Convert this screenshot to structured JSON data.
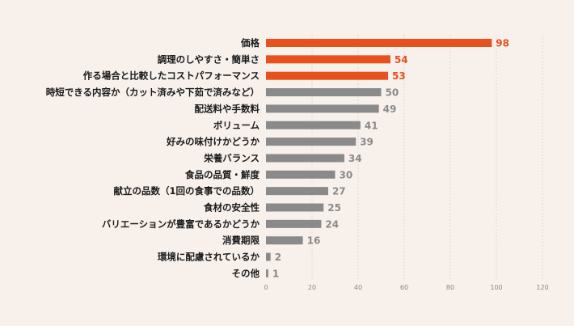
{
  "chart_data": {
    "type": "bar",
    "orientation": "horizontal",
    "categories": [
      "価格",
      "調理のしやすさ・簡単さ",
      "作る場合と比較したコストパフォーマンス",
      "時短できる内容か（カット済みや下茹で済みなど）",
      "配送料や手数料",
      "ボリューム",
      "好みの味付けかどうか",
      "栄養バランス",
      "食品の品質・鮮度",
      "献立の品数（1回の食事での品数）",
      "食材の安全性",
      "バリエーションが豊富であるかどうか",
      "消費期限",
      "環境に配慮されているか",
      "その他"
    ],
    "values": [
      98,
      54,
      53,
      50,
      49,
      41,
      39,
      34,
      30,
      27,
      25,
      24,
      16,
      2,
      1
    ],
    "highlight_count": 3,
    "xlim": [
      0,
      120
    ],
    "xticks": [
      0,
      20,
      40,
      60,
      80,
      100,
      120
    ],
    "grid": true,
    "colors": {
      "highlight": "#e8501e",
      "default": "#8a8a8a",
      "grid": "#d9d2cd",
      "background": "#f7f0eb"
    }
  }
}
